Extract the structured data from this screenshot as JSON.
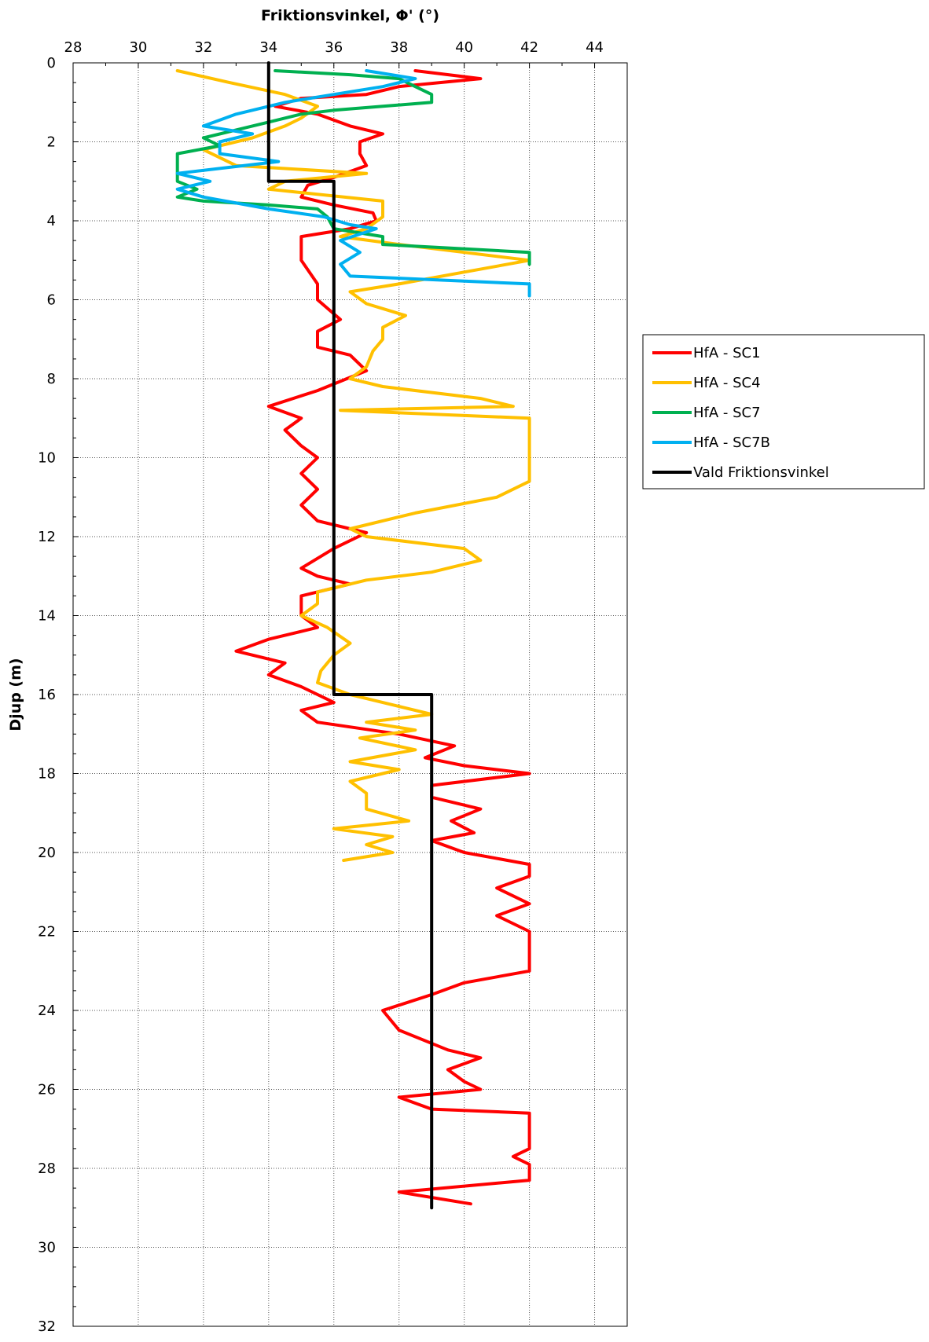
{
  "chart_data": {
    "type": "line",
    "xlabel": "Friktionsvinkel, Φ' (°)",
    "ylabel": "Djup (m)",
    "xlim": [
      28,
      45
    ],
    "ylim": [
      0,
      32
    ],
    "x_axis_position": "top",
    "y_axis_inverted": true,
    "grid": true,
    "legend_position": "right",
    "xticks": [
      "28",
      "30",
      "32",
      "34",
      "36",
      "38",
      "40",
      "42",
      "44"
    ],
    "yticks": [
      "0",
      "2",
      "4",
      "6",
      "8",
      "10",
      "12",
      "14",
      "16",
      "18",
      "20",
      "22",
      "24",
      "26",
      "28",
      "30",
      "32"
    ],
    "series": [
      {
        "name": "HfA - SC1",
        "color": "#ff0000",
        "points": [
          [
            38.5,
            0.2
          ],
          [
            40.5,
            0.4
          ],
          [
            38.0,
            0.6
          ],
          [
            37.0,
            0.8
          ],
          [
            35.0,
            0.9
          ],
          [
            34.2,
            1.1
          ],
          [
            35.5,
            1.3
          ],
          [
            36.5,
            1.6
          ],
          [
            37.5,
            1.8
          ],
          [
            36.8,
            2.0
          ],
          [
            36.8,
            2.3
          ],
          [
            37.0,
            2.6
          ],
          [
            36.0,
            2.9
          ],
          [
            35.2,
            3.1
          ],
          [
            35.0,
            3.4
          ],
          [
            36.0,
            3.6
          ],
          [
            37.2,
            3.8
          ],
          [
            37.3,
            4.0
          ],
          [
            36.5,
            4.2
          ],
          [
            35.0,
            4.4
          ],
          [
            35.0,
            5.0
          ],
          [
            35.5,
            5.6
          ],
          [
            35.5,
            6.0
          ],
          [
            36.2,
            6.5
          ],
          [
            35.5,
            6.8
          ],
          [
            35.5,
            7.2
          ],
          [
            36.5,
            7.4
          ],
          [
            37.0,
            7.8
          ],
          [
            35.5,
            8.3
          ],
          [
            34.0,
            8.7
          ],
          [
            35.0,
            9.0
          ],
          [
            34.5,
            9.3
          ],
          [
            35.0,
            9.7
          ],
          [
            35.5,
            10.0
          ],
          [
            35.0,
            10.4
          ],
          [
            35.5,
            10.8
          ],
          [
            35.0,
            11.2
          ],
          [
            35.5,
            11.6
          ],
          [
            37.0,
            11.9
          ],
          [
            36.0,
            12.3
          ],
          [
            35.0,
            12.8
          ],
          [
            35.5,
            13.0
          ],
          [
            36.5,
            13.2
          ],
          [
            35.0,
            13.5
          ],
          [
            35.0,
            14.0
          ],
          [
            35.5,
            14.3
          ],
          [
            34.0,
            14.6
          ],
          [
            33.0,
            14.9
          ],
          [
            34.5,
            15.2
          ],
          [
            34.0,
            15.5
          ],
          [
            35.0,
            15.8
          ],
          [
            36.0,
            16.2
          ],
          [
            35.0,
            16.4
          ],
          [
            35.5,
            16.7
          ],
          [
            38.0,
            17.0
          ],
          [
            39.7,
            17.3
          ],
          [
            38.8,
            17.6
          ],
          [
            40.0,
            17.8
          ],
          [
            42.0,
            18.0
          ],
          [
            39.0,
            18.3
          ],
          [
            39.0,
            18.6
          ],
          [
            40.5,
            18.9
          ],
          [
            39.6,
            19.2
          ],
          [
            40.3,
            19.5
          ],
          [
            39.0,
            19.7
          ],
          [
            40.0,
            20.0
          ],
          [
            42.0,
            20.3
          ],
          [
            42.0,
            20.6
          ],
          [
            41.0,
            20.9
          ],
          [
            42.0,
            21.3
          ],
          [
            41.0,
            21.6
          ],
          [
            42.0,
            22.0
          ],
          [
            42.0,
            23.0
          ],
          [
            40.0,
            23.3
          ],
          [
            39.0,
            23.6
          ],
          [
            37.5,
            24.0
          ],
          [
            38.0,
            24.5
          ],
          [
            39.5,
            25.0
          ],
          [
            40.5,
            25.2
          ],
          [
            39.5,
            25.5
          ],
          [
            40.0,
            25.8
          ],
          [
            40.5,
            26.0
          ],
          [
            38.0,
            26.2
          ],
          [
            39.0,
            26.5
          ],
          [
            42.0,
            26.6
          ],
          [
            42.0,
            27.5
          ],
          [
            41.5,
            27.7
          ],
          [
            42.0,
            27.9
          ],
          [
            42.0,
            28.3
          ],
          [
            38.0,
            28.6
          ],
          [
            40.2,
            28.9
          ]
        ]
      },
      {
        "name": "HfA - SC4",
        "color": "#ffc000",
        "points": [
          [
            31.2,
            0.2
          ],
          [
            32.8,
            0.5
          ],
          [
            34.5,
            0.8
          ],
          [
            35.5,
            1.1
          ],
          [
            35.0,
            1.4
          ],
          [
            34.5,
            1.6
          ],
          [
            33.5,
            1.9
          ],
          [
            32.0,
            2.2
          ],
          [
            33.0,
            2.6
          ],
          [
            37.0,
            2.8
          ],
          [
            34.5,
            3.0
          ],
          [
            34.0,
            3.2
          ],
          [
            37.5,
            3.5
          ],
          [
            37.5,
            3.9
          ],
          [
            37.0,
            4.2
          ],
          [
            36.2,
            4.4
          ],
          [
            38.0,
            4.6
          ],
          [
            40.0,
            4.8
          ],
          [
            42.0,
            5.0
          ],
          [
            40.0,
            5.3
          ],
          [
            38.0,
            5.6
          ],
          [
            36.5,
            5.8
          ],
          [
            37.0,
            6.1
          ],
          [
            38.2,
            6.4
          ],
          [
            37.5,
            6.7
          ],
          [
            37.5,
            7.0
          ],
          [
            37.2,
            7.3
          ],
          [
            37.0,
            7.7
          ],
          [
            36.5,
            8.0
          ],
          [
            37.5,
            8.2
          ],
          [
            40.5,
            8.5
          ],
          [
            41.5,
            8.7
          ],
          [
            36.2,
            8.8
          ],
          [
            42.0,
            9.0
          ],
          [
            42.0,
            9.5
          ],
          [
            42.0,
            10.0
          ],
          [
            42.0,
            10.6
          ],
          [
            41.0,
            11.0
          ],
          [
            38.5,
            11.4
          ],
          [
            36.5,
            11.8
          ],
          [
            37.0,
            12.0
          ],
          [
            40.0,
            12.3
          ],
          [
            40.5,
            12.6
          ],
          [
            39.0,
            12.9
          ],
          [
            37.0,
            13.1
          ],
          [
            35.5,
            13.4
          ],
          [
            35.5,
            13.7
          ],
          [
            35.0,
            14.0
          ],
          [
            35.8,
            14.3
          ],
          [
            36.5,
            14.7
          ],
          [
            36.0,
            15.0
          ],
          [
            35.6,
            15.4
          ],
          [
            35.5,
            15.7
          ],
          [
            36.5,
            16.0
          ],
          [
            38.0,
            16.3
          ],
          [
            39.0,
            16.5
          ],
          [
            37.0,
            16.7
          ],
          [
            38.5,
            16.9
          ],
          [
            36.8,
            17.1
          ],
          [
            38.5,
            17.4
          ],
          [
            36.5,
            17.7
          ],
          [
            38.0,
            17.9
          ],
          [
            36.5,
            18.2
          ],
          [
            37.0,
            18.5
          ],
          [
            37.0,
            18.9
          ],
          [
            38.3,
            19.2
          ],
          [
            36.0,
            19.4
          ],
          [
            37.8,
            19.6
          ],
          [
            37.0,
            19.8
          ],
          [
            37.8,
            20.0
          ],
          [
            36.3,
            20.2
          ]
        ]
      },
      {
        "name": "HfA - SC7",
        "color": "#00b050",
        "points": [
          [
            34.2,
            0.2
          ],
          [
            36.5,
            0.3
          ],
          [
            38.0,
            0.4
          ],
          [
            38.5,
            0.6
          ],
          [
            39.0,
            0.8
          ],
          [
            39.0,
            1.0
          ],
          [
            37.5,
            1.1
          ],
          [
            36.0,
            1.2
          ],
          [
            35.0,
            1.3
          ],
          [
            34.0,
            1.5
          ],
          [
            33.0,
            1.7
          ],
          [
            32.0,
            1.9
          ],
          [
            32.5,
            2.1
          ],
          [
            31.2,
            2.3
          ],
          [
            31.2,
            2.6
          ],
          [
            31.2,
            3.0
          ],
          [
            31.8,
            3.2
          ],
          [
            31.2,
            3.4
          ],
          [
            32.0,
            3.5
          ],
          [
            34.0,
            3.6
          ],
          [
            35.5,
            3.7
          ],
          [
            35.8,
            3.9
          ],
          [
            36.0,
            4.2
          ],
          [
            37.5,
            4.4
          ],
          [
            37.5,
            4.6
          ],
          [
            42.0,
            4.8
          ],
          [
            42.0,
            5.0
          ],
          [
            42.0,
            5.1
          ]
        ]
      },
      {
        "name": "HfA - SC7B",
        "color": "#00b0f0",
        "points": [
          [
            37.0,
            0.2
          ],
          [
            38.5,
            0.4
          ],
          [
            37.5,
            0.6
          ],
          [
            36.0,
            0.8
          ],
          [
            34.5,
            1.0
          ],
          [
            33.0,
            1.3
          ],
          [
            32.0,
            1.6
          ],
          [
            33.5,
            1.8
          ],
          [
            32.5,
            2.0
          ],
          [
            32.5,
            2.3
          ],
          [
            34.3,
            2.5
          ],
          [
            31.2,
            2.8
          ],
          [
            32.2,
            3.0
          ],
          [
            31.2,
            3.2
          ],
          [
            32.0,
            3.4
          ],
          [
            34.0,
            3.7
          ],
          [
            35.7,
            3.9
          ],
          [
            36.5,
            4.1
          ],
          [
            37.3,
            4.2
          ],
          [
            36.2,
            4.5
          ],
          [
            36.8,
            4.8
          ],
          [
            36.2,
            5.1
          ],
          [
            36.5,
            5.4
          ],
          [
            42.0,
            5.6
          ],
          [
            42.0,
            5.9
          ]
        ]
      },
      {
        "name": "Vald Friktionsvinkel",
        "color": "#000000",
        "points": [
          [
            34,
            0
          ],
          [
            34,
            3
          ],
          [
            36,
            3
          ],
          [
            36,
            16
          ],
          [
            39,
            16
          ],
          [
            39,
            29
          ]
        ]
      }
    ]
  }
}
